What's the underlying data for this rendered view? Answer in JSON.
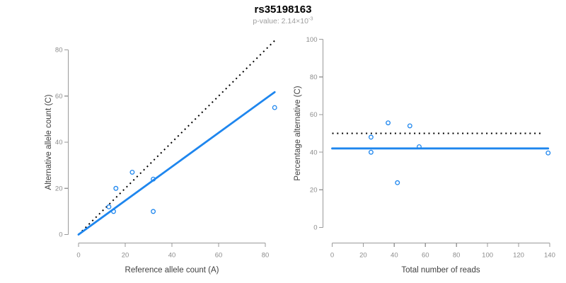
{
  "header": {
    "title": "rs35198163",
    "subtitle": "p-value: 2.14×10⁻³",
    "subtitle_base": "p-value: 2.14×10",
    "subtitle_exponent": "-3"
  },
  "colors": {
    "accent_blue": "#1E86EE",
    "dotted_black": "#000000",
    "axis_line": "#9a9a9a",
    "tick_label": "#8c8c8c",
    "axis_label": "#404040",
    "title": "#000000",
    "subtitle": "#9e9e9e",
    "background": "#ffffff"
  },
  "chart_data": [
    {
      "type": "scatter",
      "panel": "left",
      "xlabel": "Reference allele count (A)",
      "ylabel": "Alternative allele count (C)",
      "x_ticks": [
        0,
        20,
        40,
        60,
        80
      ],
      "y_ticks": [
        0,
        20,
        40,
        60,
        80
      ],
      "xlim": [
        -4,
        88
      ],
      "ylim": [
        -4,
        88
      ],
      "grid": false,
      "marker": "open-circle",
      "point_color": "#1E86EE",
      "points": [
        {
          "x": 13,
          "y": 12
        },
        {
          "x": 15,
          "y": 10
        },
        {
          "x": 16,
          "y": 20
        },
        {
          "x": 23,
          "y": 27
        },
        {
          "x": 32,
          "y": 10
        },
        {
          "x": 32,
          "y": 24
        },
        {
          "x": 84,
          "y": 55
        }
      ],
      "lines": [
        {
          "name": "identity-line",
          "style": "dotted",
          "color": "#000000",
          "x1": 0,
          "y1": 0,
          "x2": 84.5,
          "y2": 84.5
        },
        {
          "name": "fit-line",
          "style": "solid",
          "color": "#1E86EE",
          "x1": 0,
          "y1": 0,
          "x2": 84,
          "y2": 61.7
        }
      ]
    },
    {
      "type": "scatter",
      "panel": "right",
      "xlabel": "Total number of reads",
      "ylabel": "Percentage alternative (C)",
      "x_ticks": [
        0,
        20,
        40,
        60,
        80,
        100,
        120,
        140
      ],
      "y_ticks": [
        0,
        20,
        40,
        60,
        80,
        100
      ],
      "xlim": [
        -6,
        146
      ],
      "ylim": [
        -4,
        104
      ],
      "grid": false,
      "marker": "open-circle",
      "point_color": "#1E86EE",
      "points": [
        {
          "x": 25,
          "y": 48
        },
        {
          "x": 25,
          "y": 40
        },
        {
          "x": 36,
          "y": 55.6
        },
        {
          "x": 42,
          "y": 23.8
        },
        {
          "x": 50,
          "y": 54
        },
        {
          "x": 56,
          "y": 42.9
        },
        {
          "x": 139,
          "y": 39.6
        }
      ],
      "lines": [
        {
          "name": "expected-50pct-line",
          "style": "dotted",
          "color": "#000000",
          "x1": 0,
          "y1": 50,
          "x2": 136,
          "y2": 50
        },
        {
          "name": "fit-line",
          "style": "solid",
          "color": "#1E86EE",
          "x1": 0,
          "y1": 42,
          "x2": 139,
          "y2": 42
        }
      ]
    }
  ]
}
